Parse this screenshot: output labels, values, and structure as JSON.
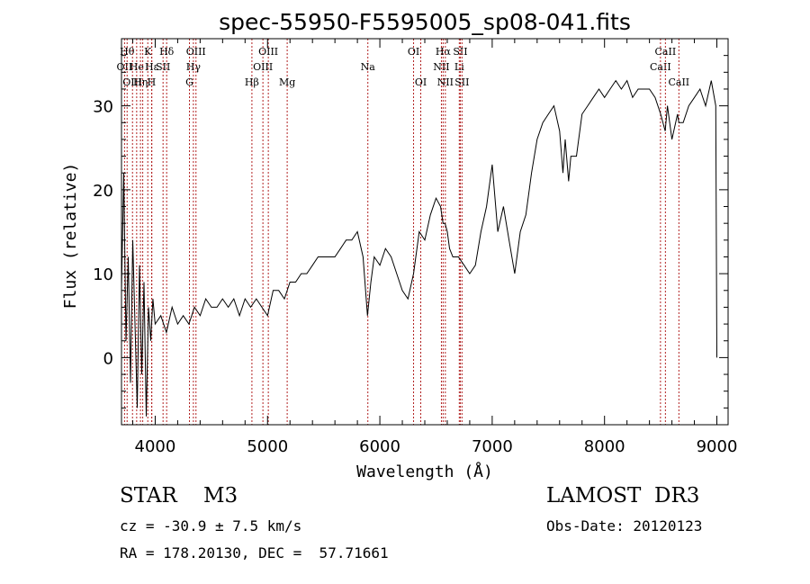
{
  "chart_data": {
    "type": "line",
    "title": "spec-55950-F5595005_sp08-041.fits",
    "xlabel": "Wavelength (Å)",
    "ylabel": "Flux (relative)",
    "xlim": [
      3700,
      9100
    ],
    "ylim": [
      -8,
      38
    ],
    "x_ticks": [
      4000,
      5000,
      6000,
      7000,
      8000,
      9000
    ],
    "x_tick_labels": [
      "4000",
      "5000",
      "6000",
      "7000",
      "8000",
      "9000"
    ],
    "y_ticks": [
      0,
      10,
      20,
      30
    ],
    "y_tick_labels": [
      "0",
      "10",
      "20",
      "30"
    ],
    "grid": false,
    "series": [
      {
        "x": [
          3700,
          3720,
          3740,
          3760,
          3780,
          3800,
          3820,
          3840,
          3860,
          3880,
          3900,
          3920,
          3940,
          3960,
          3980,
          4000,
          4050,
          4100,
          4150,
          4200,
          4250,
          4300,
          4350,
          4400,
          4450,
          4500,
          4550,
          4600,
          4650,
          4700,
          4750,
          4800,
          4850,
          4900,
          4950,
          5000,
          5050,
          5100,
          5150,
          5200,
          5250,
          5300,
          5350,
          5400,
          5450,
          5500,
          5550,
          5600,
          5650,
          5700,
          5750,
          5800,
          5850,
          5890,
          5920,
          5950,
          6000,
          6050,
          6100,
          6150,
          6200,
          6250,
          6300,
          6350,
          6400,
          6450,
          6500,
          6540,
          6563,
          6580,
          6600,
          6620,
          6650,
          6700,
          6750,
          6800,
          6850,
          6900,
          6950,
          7000,
          7050,
          7100,
          7150,
          7200,
          7250,
          7300,
          7350,
          7400,
          7450,
          7500,
          7550,
          7600,
          7630,
          7650,
          7680,
          7700,
          7750,
          7800,
          7850,
          7900,
          7950,
          8000,
          8050,
          8100,
          8150,
          8200,
          8250,
          8300,
          8350,
          8400,
          8450,
          8500,
          8540,
          8560,
          8600,
          8650,
          8662,
          8700,
          8750,
          8800,
          8850,
          8900,
          8950,
          8990,
          9000
        ],
        "y": [
          8,
          22,
          2,
          12,
          -3,
          14,
          4,
          -6,
          11,
          -2,
          9,
          -7,
          6,
          2,
          7,
          4,
          5,
          3,
          6,
          4,
          5,
          4,
          6,
          5,
          7,
          6,
          6,
          7,
          6,
          7,
          5,
          7,
          6,
          7,
          6,
          5,
          8,
          8,
          7,
          9,
          9,
          10,
          10,
          11,
          12,
          12,
          12,
          12,
          13,
          14,
          14,
          15,
          12,
          5,
          9,
          12,
          11,
          13,
          12,
          10,
          8,
          7,
          10,
          15,
          14,
          17,
          19,
          18,
          16,
          16,
          15,
          13,
          12,
          12,
          11,
          10,
          11,
          15,
          18,
          23,
          15,
          18,
          14,
          10,
          15,
          17,
          22,
          26,
          28,
          29,
          30,
          27,
          22,
          26,
          21,
          24,
          24,
          29,
          30,
          31,
          32,
          31,
          32,
          33,
          32,
          33,
          31,
          32,
          32,
          32,
          31,
          29,
          27,
          30,
          26,
          29,
          28,
          28,
          30,
          31,
          32,
          30,
          33,
          30,
          0
        ],
        "color": "#000000"
      }
    ],
    "lines": {
      "color": "#b22222",
      "items": [
        {
          "x": 3727,
          "label": "OII",
          "row": 1
        },
        {
          "x": 3750,
          "label": "Hθ",
          "row": 0
        },
        {
          "x": 3798,
          "label": "OIII",
          "row": 2
        },
        {
          "x": 3835,
          "label": "He",
          "row": 1
        },
        {
          "x": 3869,
          "label": "Hη",
          "row": 2
        },
        {
          "x": 3889,
          "label": "",
          "row": 0
        },
        {
          "x": 3934,
          "label": "K",
          "row": 0
        },
        {
          "x": 3968,
          "label": "H",
          "row": 2
        },
        {
          "x": 3970,
          "label": "Hε",
          "row": 1
        },
        {
          "x": 4070,
          "label": "SII",
          "row": 1
        },
        {
          "x": 4102,
          "label": "Hδ",
          "row": 0
        },
        {
          "x": 4305,
          "label": "G",
          "row": 2
        },
        {
          "x": 4340,
          "label": "Hγ",
          "row": 1
        },
        {
          "x": 4363,
          "label": "OIII",
          "row": 0
        },
        {
          "x": 4861,
          "label": "Hβ",
          "row": 2
        },
        {
          "x": 4959,
          "label": "OIII",
          "row": 1
        },
        {
          "x": 5007,
          "label": "OIII",
          "row": 0
        },
        {
          "x": 5175,
          "label": "Mg",
          "row": 2
        },
        {
          "x": 5893,
          "label": "Na",
          "row": 1
        },
        {
          "x": 6300,
          "label": "OI",
          "row": 0
        },
        {
          "x": 6364,
          "label": "OI",
          "row": 2
        },
        {
          "x": 6548,
          "label": "NII",
          "row": 1
        },
        {
          "x": 6563,
          "label": "Hα",
          "row": 0
        },
        {
          "x": 6583,
          "label": "NII",
          "row": 2
        },
        {
          "x": 6707,
          "label": "Li",
          "row": 1
        },
        {
          "x": 6716,
          "label": "SII",
          "row": 0
        },
        {
          "x": 6731,
          "label": "SII",
          "row": 2
        },
        {
          "x": 8498,
          "label": "CaII",
          "row": 1
        },
        {
          "x": 8542,
          "label": "CaII",
          "row": 0
        },
        {
          "x": 8662,
          "label": "CaII",
          "row": 2
        }
      ]
    }
  },
  "info": {
    "class": "STAR    M3",
    "survey": "LAMOST  DR3",
    "cz": "cz = -30.9 ± 7.5 km/s",
    "obs_date": "Obs-Date: 20120123",
    "coords": "RA = 178.20130, DEC =  57.71661"
  }
}
